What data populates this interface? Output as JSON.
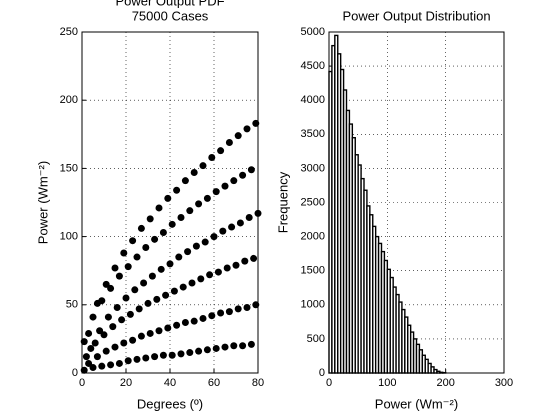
{
  "chart_data": [
    {
      "type": "scatter",
      "title": [
        "Power Output PDF",
        "75000 Cases"
      ],
      "x_label": "Degrees (º)",
      "y_label": "Power (Wm⁻²)",
      "color": "#000000",
      "grid": true,
      "xlim": [
        0,
        80
      ],
      "ylim": [
        0,
        250
      ],
      "xticks": [
        0,
        20,
        40,
        60,
        80
      ],
      "yticks": [
        0,
        50,
        100,
        150,
        200,
        250
      ],
      "x": [
        1,
        3,
        2,
        4,
        1,
        3,
        5,
        7,
        6,
        8,
        5,
        7,
        9,
        11,
        10,
        12,
        9,
        11,
        13,
        15,
        14,
        16,
        13,
        15,
        17,
        19,
        18,
        20,
        17,
        19,
        21,
        23,
        22,
        24,
        21,
        23,
        25,
        27,
        26,
        28,
        25,
        27,
        29,
        31,
        30,
        32,
        29,
        31,
        33,
        35,
        34,
        36,
        33,
        35,
        37,
        39,
        38,
        40,
        37,
        39,
        41,
        43,
        42,
        44,
        41,
        43,
        45,
        47,
        46,
        48,
        45,
        47,
        49,
        51,
        50,
        52,
        49,
        51,
        53,
        55,
        54,
        56,
        53,
        55,
        57,
        59,
        58,
        60,
        57,
        59,
        61,
        63,
        62,
        64,
        61,
        63,
        65,
        67,
        66,
        68,
        65,
        67,
        69,
        71,
        70,
        72,
        69,
        71,
        73,
        75,
        74,
        76,
        73,
        75,
        77,
        79,
        78,
        80,
        77,
        79
      ],
      "values": [
        2,
        7,
        12,
        18,
        23,
        29,
        4,
        12,
        22,
        31,
        41,
        51,
        5,
        16,
        28,
        41,
        53,
        65,
        6,
        19,
        34,
        48,
        62,
        77,
        7,
        22,
        39,
        55,
        71,
        88,
        9,
        24,
        43,
        61,
        78,
        97,
        10,
        27,
        47,
        66,
        85,
        106,
        11,
        29,
        51,
        71,
        92,
        113,
        12,
        31,
        54,
        76,
        98,
        121,
        13,
        33,
        57,
        80,
        103,
        128,
        13,
        35,
        60,
        85,
        109,
        134,
        14,
        37,
        63,
        89,
        114,
        141,
        15,
        38,
        66,
        93,
        119,
        147,
        16,
        40,
        69,
        96,
        124,
        152,
        17,
        42,
        72,
        100,
        128,
        158,
        18,
        44,
        74,
        104,
        133,
        163,
        19,
        45,
        77,
        107,
        137,
        169,
        20,
        47,
        79,
        110,
        141,
        174,
        20,
        48,
        82,
        114,
        145,
        179,
        21,
        50,
        84,
        117,
        149,
        183
      ]
    },
    {
      "type": "histogram",
      "title": [
        "Power Output Distribution"
      ],
      "x_label": "Power (Wm⁻²)",
      "y_label": "Frequency",
      "color": "#ffffff",
      "edge_color": "#000000",
      "grid": true,
      "xlim": [
        0,
        300
      ],
      "ylim": [
        0,
        5000
      ],
      "xticks": [
        0,
        100,
        200,
        300
      ],
      "yticks": [
        0,
        500,
        1000,
        1500,
        2000,
        2500,
        3000,
        3500,
        4000,
        4500,
        5000
      ],
      "bins": [
        0,
        5,
        10,
        15,
        20,
        25,
        30,
        35,
        40,
        45,
        50,
        55,
        60,
        65,
        70,
        75,
        80,
        85,
        90,
        95,
        100,
        105,
        110,
        115,
        120,
        125,
        130,
        135,
        140,
        145,
        150,
        155,
        160,
        165,
        170,
        175,
        180,
        185,
        190,
        195,
        200
      ],
      "values": [
        4420,
        4800,
        4950,
        4680,
        4450,
        4150,
        3850,
        3650,
        3450,
        3200,
        3050,
        2850,
        2680,
        2450,
        2320,
        2150,
        2000,
        1900,
        1780,
        1650,
        1520,
        1400,
        1260,
        1150,
        1040,
        930,
        820,
        700,
        600,
        500,
        420,
        340,
        260,
        200,
        140,
        90,
        50,
        25,
        10,
        5
      ]
    }
  ]
}
